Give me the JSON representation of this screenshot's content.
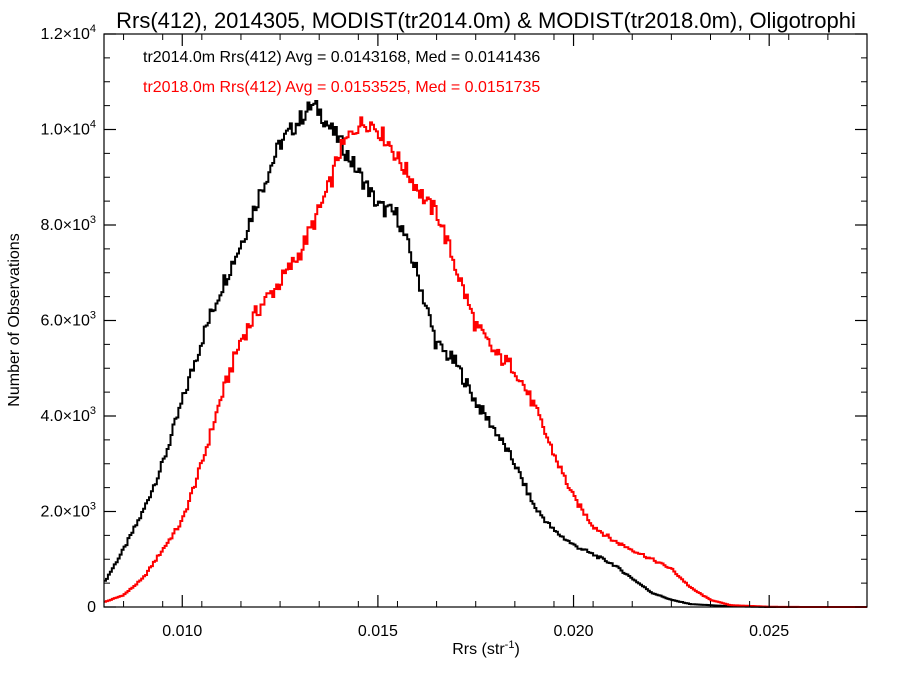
{
  "chart_data": {
    "type": "line",
    "title": "Rrs(412), 2014305, MODIST(tr2014.0m) & MODIST(tr2018.0m), Oligotrophi",
    "xlabel": "Rrs (str",
    "xlabel_sup": "-1",
    "xlabel_tail": ")",
    "ylabel": "Number of Observations",
    "xlim": [
      0.008,
      0.0275
    ],
    "ylim": [
      0,
      12000
    ],
    "grid": false,
    "step": true,
    "x_ticks": [
      {
        "value": 0.01,
        "label": "0.010"
      },
      {
        "value": 0.015,
        "label": "0.015"
      },
      {
        "value": 0.02,
        "label": "0.020"
      },
      {
        "value": 0.025,
        "label": "0.025"
      }
    ],
    "y_ticks": [
      {
        "value": 0,
        "mant": "0",
        "exp": ""
      },
      {
        "value": 2000,
        "mant": "2.0×10",
        "exp": "3"
      },
      {
        "value": 4000,
        "mant": "4.0×10",
        "exp": "3"
      },
      {
        "value": 6000,
        "mant": "6.0×10",
        "exp": "3"
      },
      {
        "value": 8000,
        "mant": "8.0×10",
        "exp": "3"
      },
      {
        "value": 10000,
        "mant": "1.0×10",
        "exp": "4"
      },
      {
        "value": 12000,
        "mant": "1.2×10",
        "exp": "4"
      }
    ],
    "annotations": [
      {
        "text": "tr2014.0m Rrs(412) Avg = 0.0143168, Med = 0.0141436",
        "color": "#000000"
      },
      {
        "text": "tr2018.0m Rrs(412) Avg = 0.0153525, Med = 0.0151735",
        "color": "#ff0000"
      }
    ],
    "series": [
      {
        "color": "#000000",
        "x": [
          0.008,
          0.0085,
          0.009,
          0.0095,
          0.01,
          0.0105,
          0.011,
          0.0115,
          0.012,
          0.0125,
          0.013,
          0.0133,
          0.0135,
          0.0138,
          0.014,
          0.0142,
          0.0145,
          0.0148,
          0.015,
          0.0155,
          0.016,
          0.0163,
          0.0165,
          0.017,
          0.0175,
          0.018,
          0.0185,
          0.019,
          0.0195,
          0.02,
          0.0205,
          0.021,
          0.0215,
          0.022,
          0.0225,
          0.023,
          0.024,
          0.025,
          0.0275
        ],
        "y": [
          500,
          1200,
          2000,
          3000,
          4300,
          5600,
          6700,
          7600,
          8700,
          9700,
          10200,
          10500,
          10400,
          10000,
          9800,
          9500,
          9100,
          8700,
          8400,
          8200,
          7000,
          6100,
          5500,
          5100,
          4300,
          3700,
          3000,
          2100,
          1600,
          1300,
          1100,
          900,
          600,
          300,
          150,
          60,
          15,
          0,
          0
        ]
      },
      {
        "color": "#ff0000",
        "x": [
          0.008,
          0.0085,
          0.009,
          0.0095,
          0.01,
          0.0105,
          0.011,
          0.0115,
          0.012,
          0.0125,
          0.013,
          0.0135,
          0.0138,
          0.014,
          0.0143,
          0.0145,
          0.0148,
          0.015,
          0.0153,
          0.0155,
          0.016,
          0.0163,
          0.0165,
          0.017,
          0.0175,
          0.018,
          0.0185,
          0.019,
          0.0195,
          0.02,
          0.0205,
          0.021,
          0.0215,
          0.022,
          0.0225,
          0.023,
          0.0235,
          0.024,
          0.025,
          0.026,
          0.0275
        ],
        "y": [
          100,
          250,
          600,
          1200,
          1800,
          3000,
          4400,
          5600,
          6300,
          6800,
          7400,
          8300,
          8900,
          9500,
          9900,
          10100,
          10150,
          10000,
          9700,
          9400,
          8800,
          8400,
          8300,
          7100,
          5900,
          5300,
          5000,
          4200,
          3200,
          2300,
          1700,
          1400,
          1200,
          1000,
          800,
          400,
          150,
          40,
          5,
          0,
          0
        ]
      }
    ]
  }
}
